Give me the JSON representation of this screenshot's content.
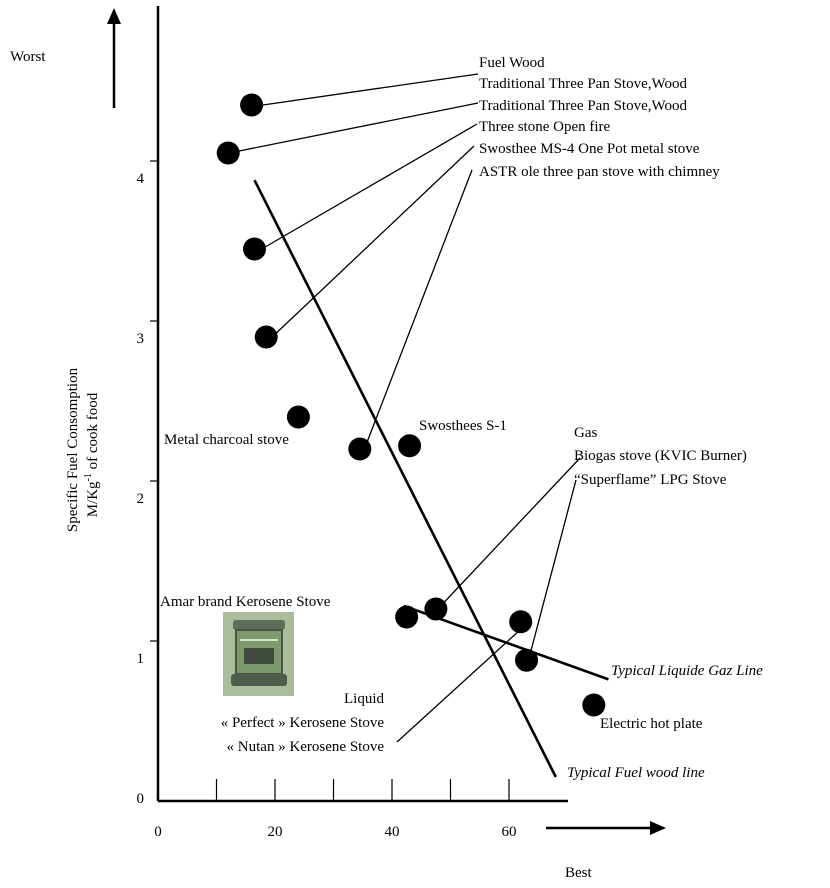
{
  "chart_data": {
    "type": "scatter",
    "xlabel_arrow": "Best",
    "ylabel_arrow": "Worst",
    "ylabel_lines": [
      "Specific Fuel Consomption",
      "M/Kg",
      "-1",
      " of cook food"
    ],
    "xlim": [
      0,
      70
    ],
    "ylim": [
      0,
      4.9
    ],
    "x_ticks": [
      0,
      20,
      40,
      60
    ],
    "y_ticks": [
      0,
      1,
      2,
      3,
      4
    ],
    "points": [
      {
        "x": 16,
        "y": 4.35
      },
      {
        "x": 12,
        "y": 4.05
      },
      {
        "x": 16.5,
        "y": 3.45
      },
      {
        "x": 18.5,
        "y": 2.9
      },
      {
        "x": 24,
        "y": 2.4
      },
      {
        "x": 34.5,
        "y": 2.2
      },
      {
        "x": 43,
        "y": 2.22
      },
      {
        "x": 42.5,
        "y": 1.15
      },
      {
        "x": 47.5,
        "y": 1.2
      },
      {
        "x": 62,
        "y": 1.12
      },
      {
        "x": 63,
        "y": 0.88
      },
      {
        "x": 74.5,
        "y": 0.6
      }
    ],
    "lines": [
      {
        "name": "Typical Fuel wood line",
        "from": [
          16.5,
          3.88
        ],
        "to": [
          68,
          0.15
        ]
      },
      {
        "name": "Typical Liquide Gaz Line",
        "from": [
          42,
          1.22
        ],
        "to": [
          77,
          0.76
        ]
      }
    ],
    "labels": {
      "fuel_wood": "Fuel Wood",
      "trad_wood_1": "Traditional Three Pan Stove,Wood",
      "trad_wood_2": "Traditional Three Pan Stove,Wood",
      "three_stone": "Three stone Open fire",
      "swosthee_ms4": "Swosthee MS-4 One Pot metal stove",
      "astra": "ASTR ole three pan stove with chimney",
      "metal_charcoal": "Metal charcoal stove",
      "swosthees_s1": "Swosthees S-1",
      "gas": "Gas",
      "biogas": "Biogas stove (KVIC Burner)",
      "superflame": "“Superflame” LPG Stove",
      "amar": "Amar brand Kerosene Stove",
      "liquid": "Liquid",
      "perfect": "« Perfect » Kerosene Stove",
      "nutan": "« Nutan » Kerosene Stove",
      "electric": "Electric hot plate",
      "liquide_gaz_line": "Typical Liquide Gaz Line",
      "fuel_wood_line": "Typical Fuel wood line"
    }
  },
  "colors": {
    "ink": "#000000",
    "background": "#ffffff",
    "stove_photo": "#7d9a6e"
  }
}
